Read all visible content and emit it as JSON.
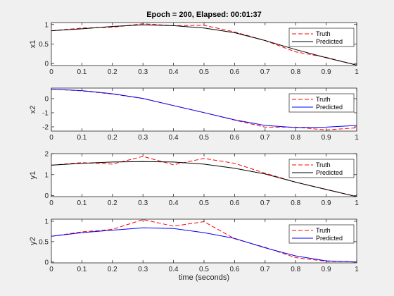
{
  "chart_data": {
    "type": "line",
    "title": "Epoch = 200, Elapsed: 00:01:37",
    "xlabel": "time (seconds)",
    "x": [
      0,
      0.1,
      0.2,
      0.3,
      0.4,
      0.5,
      0.6,
      0.7,
      0.8,
      0.9,
      1
    ],
    "xlim": [
      0,
      1
    ],
    "xticks": [
      "0",
      "0.1",
      "0.2",
      "0.3",
      "0.4",
      "0.5",
      "0.6",
      "0.7",
      "0.8",
      "0.9",
      "1"
    ],
    "legend_position": "top-right",
    "panels": [
      {
        "ylabel": "x1",
        "ylim": [
          -0.05,
          1.05
        ],
        "yticks": [
          0,
          0.5,
          1
        ],
        "yticklabels": [
          "0",
          "0.5",
          "1"
        ],
        "series": [
          {
            "name": "Truth",
            "color": "#ff0000",
            "dash": "dashed",
            "values": [
              0.84,
              0.91,
              0.93,
              1.02,
              0.97,
              0.98,
              0.81,
              0.59,
              0.3,
              0.16,
              -0.04
            ]
          },
          {
            "name": "Predicted",
            "color": "#000000",
            "dash": "solid",
            "values": [
              0.84,
              0.89,
              0.95,
              0.99,
              0.97,
              0.91,
              0.79,
              0.59,
              0.36,
              0.15,
              -0.04
            ]
          }
        ]
      },
      {
        "ylabel": "x2",
        "ylim": [
          -2.3,
          0.75
        ],
        "yticks": [
          0,
          -1,
          -2
        ],
        "yticklabels": [
          "0",
          "-1",
          "-2"
        ],
        "series": [
          {
            "name": "Truth",
            "color": "#ff0000",
            "dash": "dashed",
            "values": [
              0.68,
              0.55,
              0.33,
              0.01,
              -0.49,
              -0.99,
              -1.52,
              -2.02,
              -2.02,
              -2.22,
              -2.07
            ]
          },
          {
            "name": "Predicted",
            "color": "#0000ff",
            "dash": "solid",
            "values": [
              0.68,
              0.57,
              0.35,
              0.02,
              -0.49,
              -0.99,
              -1.5,
              -1.9,
              -2.05,
              -2.02,
              -1.9
            ]
          }
        ]
      },
      {
        "ylabel": "y1",
        "ylim": [
          -0.05,
          2.0
        ],
        "yticks": [
          0,
          1,
          2
        ],
        "yticklabels": [
          "0",
          "1",
          "2"
        ],
        "series": [
          {
            "name": "Truth",
            "color": "#ff0000",
            "dash": "dashed",
            "values": [
              1.45,
              1.57,
              1.5,
              1.87,
              1.47,
              1.77,
              1.54,
              1.07,
              0.64,
              0.3,
              -0.05
            ]
          },
          {
            "name": "Predicted",
            "color": "#000000",
            "dash": "solid",
            "values": [
              1.45,
              1.54,
              1.6,
              1.62,
              1.6,
              1.5,
              1.3,
              1.03,
              0.64,
              0.29,
              -0.05
            ]
          }
        ]
      },
      {
        "ylabel": "y2",
        "ylim": [
          -0.02,
          1.05
        ],
        "yticks": [
          0,
          0.5,
          1
        ],
        "yticklabels": [
          "0",
          "0.5",
          "1"
        ],
        "series": [
          {
            "name": "Truth",
            "color": "#ff0000",
            "dash": "dashed",
            "values": [
              0.63,
              0.74,
              0.8,
              1.04,
              0.88,
              0.99,
              0.57,
              0.36,
              0.11,
              0.02,
              0
            ]
          },
          {
            "name": "Predicted",
            "color": "#0000ff",
            "dash": "solid",
            "values": [
              0.63,
              0.72,
              0.78,
              0.84,
              0.82,
              0.72,
              0.58,
              0.35,
              0.15,
              0.03,
              0
            ]
          }
        ]
      }
    ]
  }
}
